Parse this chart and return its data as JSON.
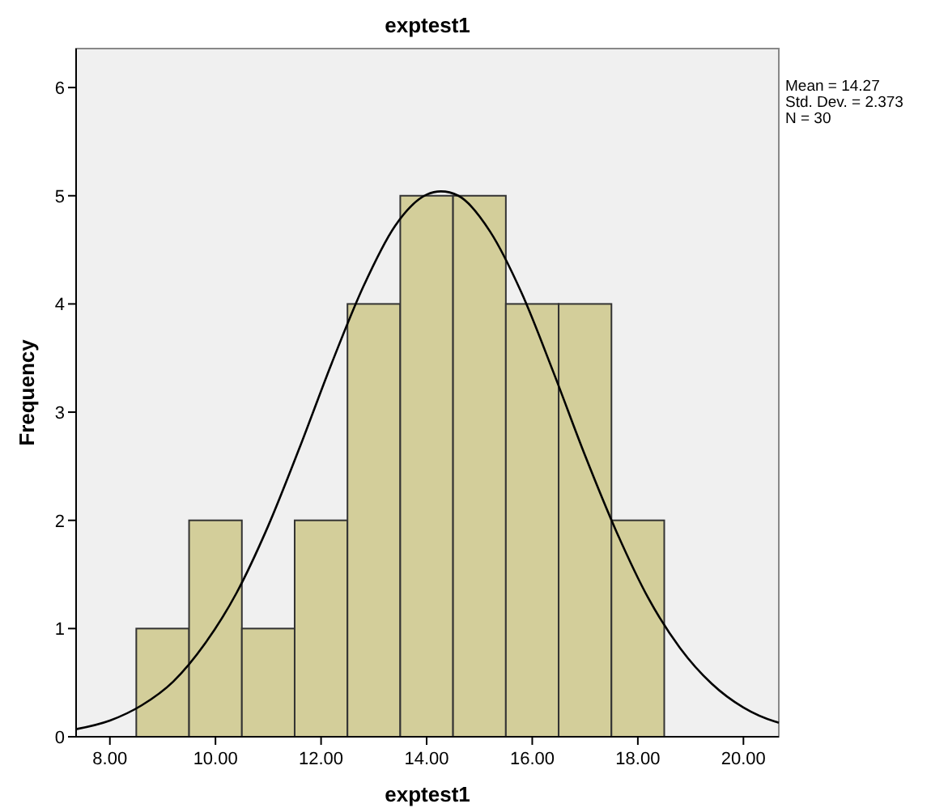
{
  "chart_data": {
    "type": "histogram",
    "title": "exptest1",
    "xlabel": "exptest1",
    "ylabel": "Frequency",
    "annotations": [
      "Mean = 14.27",
      "Std. Dev. = 2.373",
      "N = 30"
    ],
    "bins": [
      8.5,
      9.5,
      10.5,
      11.5,
      12.5,
      13.5,
      14.5,
      15.5,
      16.5,
      17.5,
      18.5
    ],
    "xlim": [
      7.36,
      20.67
    ],
    "ylim": [
      0,
      6.36
    ],
    "xticks": [
      {
        "value": 8,
        "label": "8.00"
      },
      {
        "value": 10,
        "label": "10.00"
      },
      {
        "value": 12,
        "label": "12.00"
      },
      {
        "value": 14,
        "label": "14.00"
      },
      {
        "value": 16,
        "label": "16.00"
      },
      {
        "value": 18,
        "label": "18.00"
      },
      {
        "value": 20,
        "label": "20.00"
      }
    ],
    "yticks": [
      0,
      1,
      2,
      3,
      4,
      5,
      6
    ],
    "series": [
      {
        "type": "histogram",
        "color": "#d3ce9a",
        "values": [
          1,
          2,
          1,
          2,
          4,
          5,
          5,
          4,
          4,
          2
        ]
      },
      {
        "type": "line",
        "color": "#000000",
        "x": [
          7.36,
          8,
          8.6,
          9.2,
          9.8,
          10.4,
          11,
          11.6,
          12.2,
          12.8,
          13.4,
          14,
          14.27,
          14.6,
          15.2,
          15.8,
          16.4,
          17,
          17.6,
          18.2,
          18.8,
          19.4,
          20,
          20.6,
          20.67
        ],
        "values": [
          0.07,
          0.15,
          0.29,
          0.51,
          0.86,
          1.33,
          1.95,
          2.68,
          3.45,
          4.16,
          4.72,
          5.01,
          5.04,
          5.0,
          4.67,
          4.1,
          3.37,
          2.6,
          1.89,
          1.28,
          0.82,
          0.49,
          0.27,
          0.14,
          0.13
        ]
      }
    ]
  }
}
